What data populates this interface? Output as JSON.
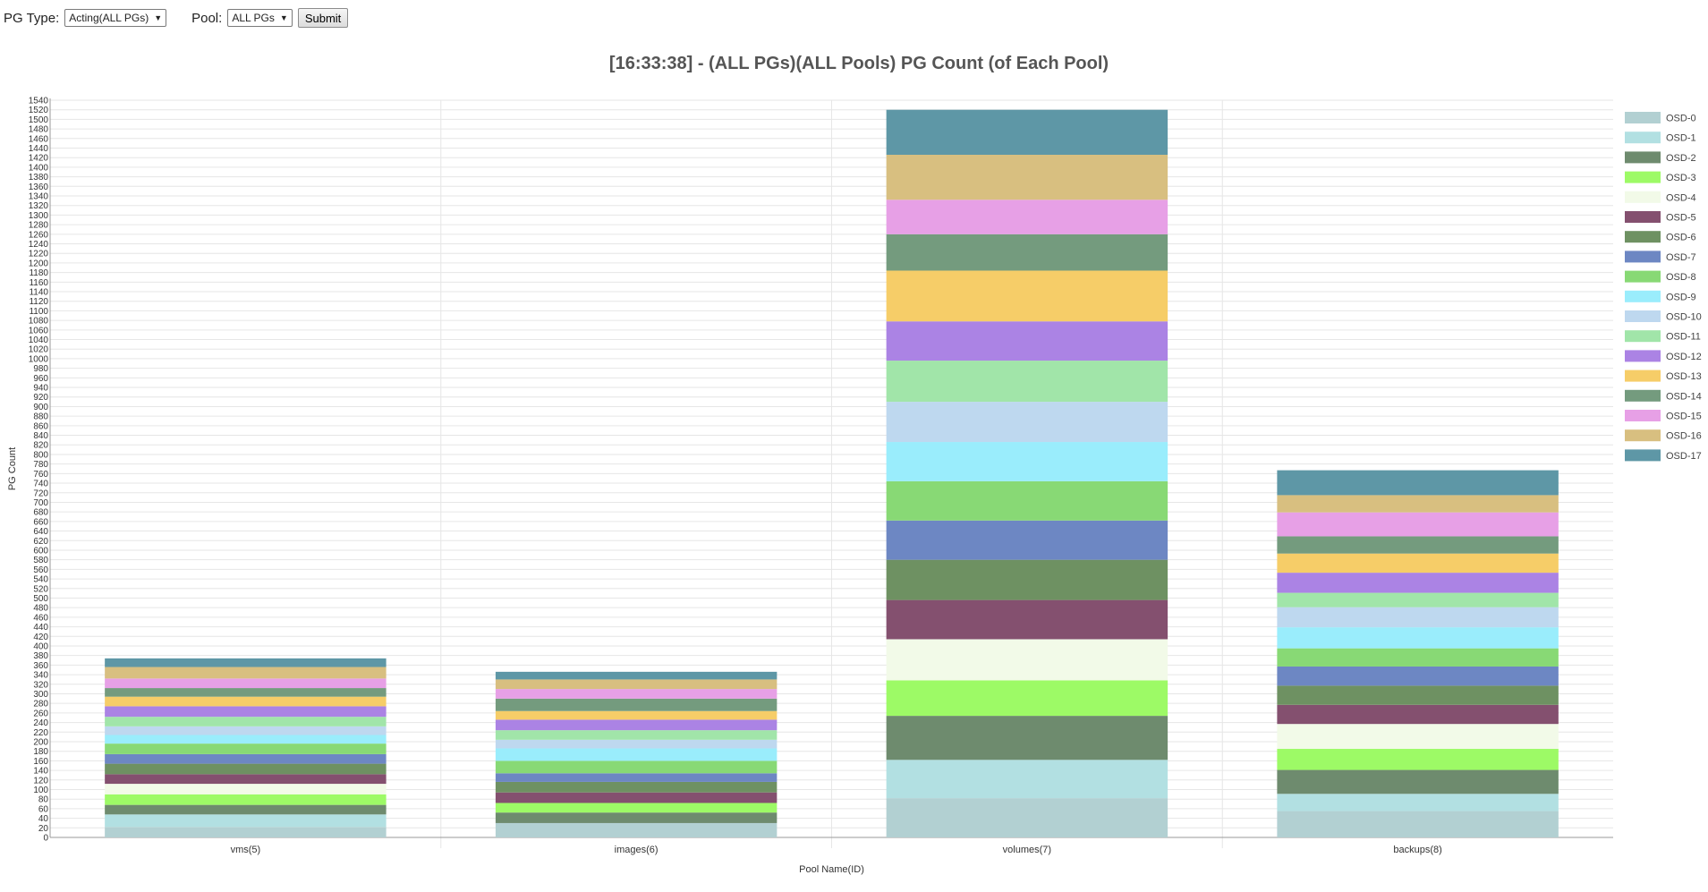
{
  "controls": {
    "pg_type_label": "PG Type:",
    "pg_type_value": "Acting(ALL PGs)",
    "pool_label": "Pool:",
    "pool_value": "ALL PGs",
    "submit_label": "Submit"
  },
  "chart_data": {
    "type": "bar",
    "stacked": true,
    "title": "[16:33:38] - (ALL PGs)(ALL Pools) PG Count (of Each Pool)",
    "xlabel": "Pool Name(ID)",
    "ylabel": "PG Count",
    "ylim": [
      0,
      1540
    ],
    "ytick_step": 20,
    "grid": true,
    "legend_position": "right",
    "categories": [
      "vms(5)",
      "images(6)",
      "volumes(7)",
      "backups(8)"
    ],
    "series": [
      {
        "name": "OSD-0",
        "color": "#b2d0d2",
        "values": [
          22,
          30,
          82,
          55
        ]
      },
      {
        "name": "OSD-1",
        "color": "#b2e0e2",
        "values": [
          26,
          0,
          80,
          36
        ]
      },
      {
        "name": "OSD-2",
        "color": "#6e8b6e",
        "values": [
          20,
          22,
          92,
          50
        ]
      },
      {
        "name": "OSD-3",
        "color": "#9dfa66",
        "values": [
          22,
          20,
          74,
          44
        ]
      },
      {
        "name": "OSD-4",
        "color": "#f2fae8",
        "values": [
          22,
          0,
          86,
          52
        ]
      },
      {
        "name": "OSD-5",
        "color": "#84506f",
        "values": [
          20,
          22,
          82,
          40
        ]
      },
      {
        "name": "OSD-6",
        "color": "#6e9162",
        "values": [
          22,
          22,
          84,
          40
        ]
      },
      {
        "name": "OSD-7",
        "color": "#6d87c3",
        "values": [
          20,
          18,
          82,
          40
        ]
      },
      {
        "name": "OSD-8",
        "color": "#88d975",
        "values": [
          22,
          26,
          82,
          38
        ]
      },
      {
        "name": "OSD-9",
        "color": "#9aedfc",
        "values": [
          18,
          26,
          82,
          44
        ]
      },
      {
        "name": "OSD-10",
        "color": "#bed8ef",
        "values": [
          18,
          18,
          84,
          42
        ]
      },
      {
        "name": "OSD-11",
        "color": "#a1e5a9",
        "values": [
          20,
          20,
          86,
          30
        ]
      },
      {
        "name": "OSD-12",
        "color": "#ab83e4",
        "values": [
          22,
          22,
          82,
          42
        ]
      },
      {
        "name": "OSD-13",
        "color": "#f6cd68",
        "values": [
          20,
          18,
          106,
          40
        ]
      },
      {
        "name": "OSD-14",
        "color": "#749b7e",
        "values": [
          18,
          26,
          76,
          36
        ]
      },
      {
        "name": "OSD-15",
        "color": "#e7a0e6",
        "values": [
          20,
          20,
          72,
          50
        ]
      },
      {
        "name": "OSD-16",
        "color": "#d8bf80",
        "values": [
          24,
          20,
          94,
          36
        ]
      },
      {
        "name": "OSD-17",
        "color": "#5e97a6",
        "values": [
          18,
          16,
          94,
          52
        ]
      }
    ]
  }
}
